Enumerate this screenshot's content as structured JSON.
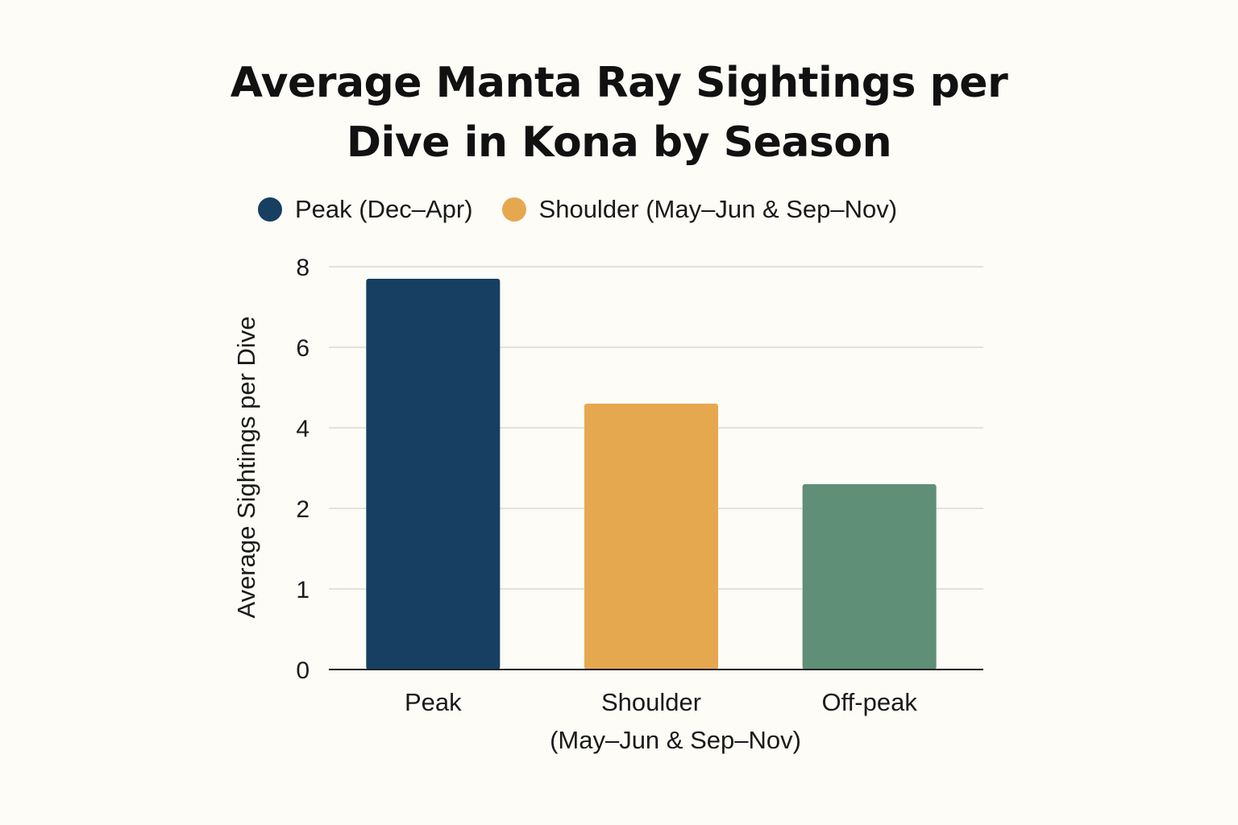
{
  "chart_data": {
    "type": "bar",
    "title_lines": [
      "Average Manta Ray Sightings per",
      "Dive in Kona by Season"
    ],
    "ylabel": "Average Sightings per Dive",
    "xlabel": "",
    "y_ticks": [
      0,
      1,
      2,
      4,
      6,
      8
    ],
    "ylim": [
      0,
      8
    ],
    "grid": true,
    "legend_position": "top",
    "legend": [
      {
        "label": "Peak (Dec–Apr)",
        "color": "#173f61"
      },
      {
        "label": "Shoulder (May–Jun & Sep–Nov)",
        "color": "#e6a84f"
      }
    ],
    "categories": [
      {
        "label": "Peak",
        "sublabel": ""
      },
      {
        "label": "Shoulder",
        "sublabel": "(May–Jun & Sep–Nov)"
      },
      {
        "label": "Off-peak",
        "sublabel": ""
      }
    ],
    "values": [
      7.7,
      4.6,
      2.6
    ],
    "colors": [
      "#173f61",
      "#e6a84f",
      "#5f8f76"
    ]
  }
}
